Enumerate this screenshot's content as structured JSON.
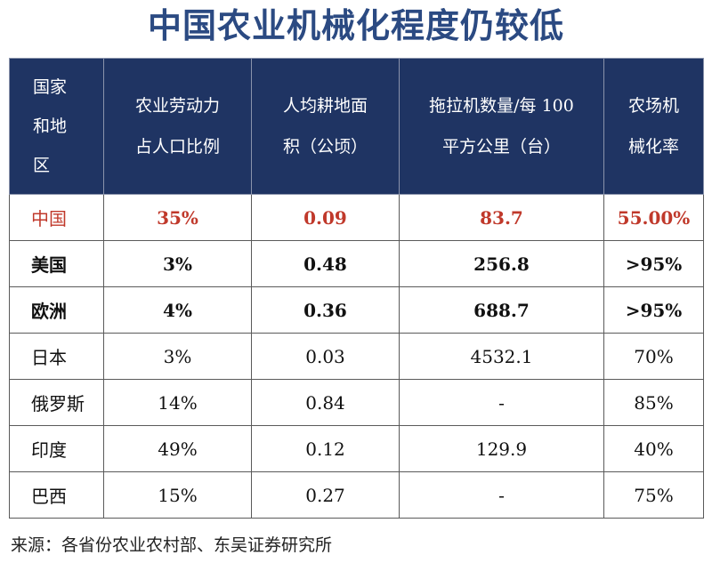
{
  "title": "中国农业机械化程度仍较低",
  "table": {
    "headers": [
      [
        "国家",
        "和地",
        "区"
      ],
      [
        "农业劳动力",
        "占人口比例"
      ],
      [
        "人均耕地面",
        "积（公顷）"
      ],
      [
        "拖拉机数量/每 100",
        "平方公里（台）"
      ],
      [
        "农场机",
        "械化率"
      ]
    ],
    "rows": [
      {
        "country": "中国",
        "labor": "35%",
        "land": "0.09",
        "tractors": "83.7",
        "mech": "55.00%"
      },
      {
        "country": "美国",
        "labor": "3%",
        "land": "0.48",
        "tractors": "256.8",
        "mech": ">95%"
      },
      {
        "country": "欧洲",
        "labor": "4%",
        "land": "0.36",
        "tractors": "688.7",
        "mech": ">95%"
      },
      {
        "country": "日本",
        "labor": "3%",
        "land": "0.03",
        "tractors": "4532.1",
        "mech": "70%"
      },
      {
        "country": "俄罗斯",
        "labor": "14%",
        "land": "0.84",
        "tractors": "-",
        "mech": "85%"
      },
      {
        "country": "印度",
        "labor": "49%",
        "land": "0.12",
        "tractors": "129.9",
        "mech": "40%"
      },
      {
        "country": "巴西",
        "labor": "15%",
        "land": "0.27",
        "tractors": "-",
        "mech": "75%"
      }
    ]
  },
  "source": "来源：各省份农业农村部、东吴证券研究所"
}
